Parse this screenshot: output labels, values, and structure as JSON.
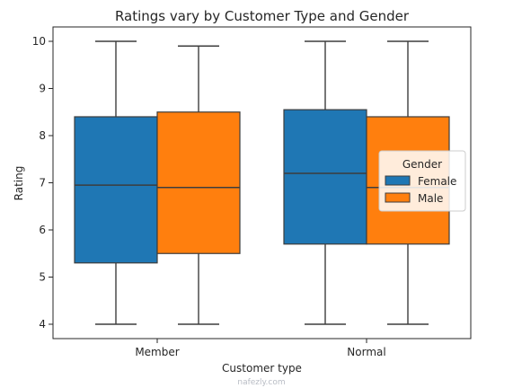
{
  "chart_data": {
    "type": "box",
    "title": "Ratings vary by Customer Type and Gender",
    "xlabel": "Customer type",
    "ylabel": "Rating",
    "ylim": [
      3.7,
      10.3
    ],
    "yticks": [
      4,
      5,
      6,
      7,
      8,
      9,
      10
    ],
    "categories": [
      "Member",
      "Normal"
    ],
    "legend": {
      "title": "Gender",
      "placement": "center-right"
    },
    "series": [
      {
        "name": "Female",
        "color": "#1f77b4",
        "boxes": [
          {
            "category": "Member",
            "min": 4.0,
            "q1": 5.3,
            "median": 6.95,
            "q3": 8.4,
            "max": 10.0
          },
          {
            "category": "Normal",
            "min": 4.0,
            "q1": 5.7,
            "median": 7.2,
            "q3": 8.55,
            "max": 10.0
          }
        ]
      },
      {
        "name": "Male",
        "color": "#ff7f0e",
        "boxes": [
          {
            "category": "Member",
            "min": 4.0,
            "q1": 5.5,
            "median": 6.9,
            "q3": 8.5,
            "max": 9.9
          },
          {
            "category": "Normal",
            "min": 4.0,
            "q1": 5.7,
            "median": 6.9,
            "q3": 8.4,
            "max": 10.0
          }
        ]
      }
    ]
  },
  "watermark": {
    "text": "nafezly.com"
  }
}
